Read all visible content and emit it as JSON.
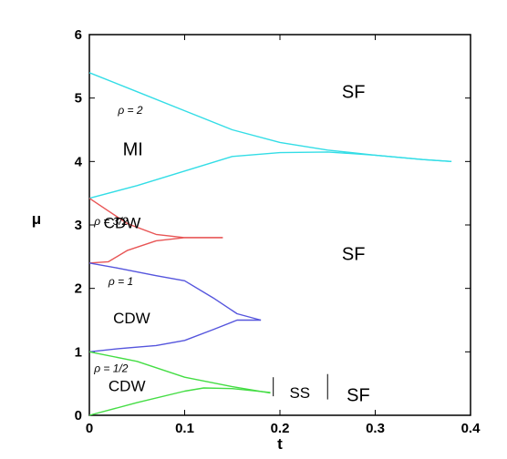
{
  "chart_data": {
    "type": "line",
    "xlabel": "t",
    "ylabel": "μ",
    "xlim": [
      0,
      0.4
    ],
    "ylim": [
      0,
      6
    ],
    "xticks": [
      "0",
      "0.1",
      "0.2",
      "0.3",
      "0.4"
    ],
    "yticks": [
      "0",
      "1",
      "2",
      "3",
      "4",
      "5",
      "6"
    ],
    "grid": false,
    "series": [
      {
        "color": "#33dde6",
        "x": [
          0,
          0.05,
          0.1,
          0.15,
          0.2,
          0.25,
          0.3,
          0.35,
          0.38
        ],
        "y": [
          5.4,
          5.1,
          4.8,
          4.5,
          4.3,
          4.18,
          4.1,
          4.03,
          4.0
        ]
      },
      {
        "color": "#33dde6",
        "x": [
          0,
          0.05,
          0.1,
          0.15,
          0.2,
          0.25,
          0.3,
          0.35,
          0.38
        ],
        "y": [
          3.42,
          3.62,
          3.85,
          4.08,
          4.14,
          4.15,
          4.1,
          4.03,
          4.0
        ]
      },
      {
        "color": "#e85555",
        "x": [
          0,
          0.02,
          0.04,
          0.07,
          0.1,
          0.14
        ],
        "y": [
          3.42,
          3.22,
          3.02,
          2.85,
          2.8,
          2.8
        ]
      },
      {
        "color": "#e85555",
        "x": [
          0,
          0.02,
          0.04,
          0.07,
          0.1,
          0.14
        ],
        "y": [
          2.4,
          2.42,
          2.6,
          2.75,
          2.8,
          2.8
        ]
      },
      {
        "color": "#5555dd",
        "x": [
          0,
          0.03,
          0.07,
          0.1,
          0.13,
          0.155,
          0.18
        ],
        "y": [
          2.4,
          2.32,
          2.2,
          2.12,
          1.85,
          1.6,
          1.5
        ]
      },
      {
        "color": "#5555dd",
        "x": [
          0,
          0.03,
          0.07,
          0.1,
          0.13,
          0.155,
          0.18
        ],
        "y": [
          1.0,
          1.05,
          1.1,
          1.18,
          1.35,
          1.5,
          1.5
        ]
      },
      {
        "color": "#44dd44",
        "x": [
          0,
          0.05,
          0.1,
          0.15,
          0.19
        ],
        "y": [
          1.0,
          0.85,
          0.6,
          0.45,
          0.35
        ]
      },
      {
        "color": "#44dd44",
        "x": [
          0,
          0.05,
          0.1,
          0.12,
          0.15,
          0.19
        ],
        "y": [
          0.0,
          0.2,
          0.38,
          0.43,
          0.42,
          0.36
        ]
      }
    ],
    "separators": [
      {
        "x": 0.193,
        "y": [
          0.3,
          0.6
        ]
      },
      {
        "x": 0.25,
        "y": [
          0.25,
          0.65
        ]
      }
    ],
    "annotations": [
      {
        "text": "SF",
        "x": 0.265,
        "y": 5.0,
        "size": "big"
      },
      {
        "text": "ρ = 2",
        "x": 0.03,
        "y": 4.75,
        "size": "small"
      },
      {
        "text": "MI",
        "x": 0.035,
        "y": 4.1,
        "size": "big"
      },
      {
        "text": "ρ = 3/2",
        "x": 0.005,
        "y": 3.0,
        "size": "small"
      },
      {
        "text": "CDW",
        "x": 0.015,
        "y": 2.95,
        "size": "mid"
      },
      {
        "text": "SF",
        "x": 0.265,
        "y": 2.45,
        "size": "big"
      },
      {
        "text": "ρ = 1",
        "x": 0.02,
        "y": 2.05,
        "size": "small"
      },
      {
        "text": "CDW",
        "x": 0.025,
        "y": 1.45,
        "size": "mid"
      },
      {
        "text": "ρ = 1/2",
        "x": 0.005,
        "y": 0.68,
        "size": "small"
      },
      {
        "text": "CDW",
        "x": 0.02,
        "y": 0.38,
        "size": "mid"
      },
      {
        "text": "SS",
        "x": 0.21,
        "y": 0.27,
        "size": "mid"
      },
      {
        "text": "SF",
        "x": 0.27,
        "y": 0.22,
        "size": "big"
      }
    ]
  }
}
